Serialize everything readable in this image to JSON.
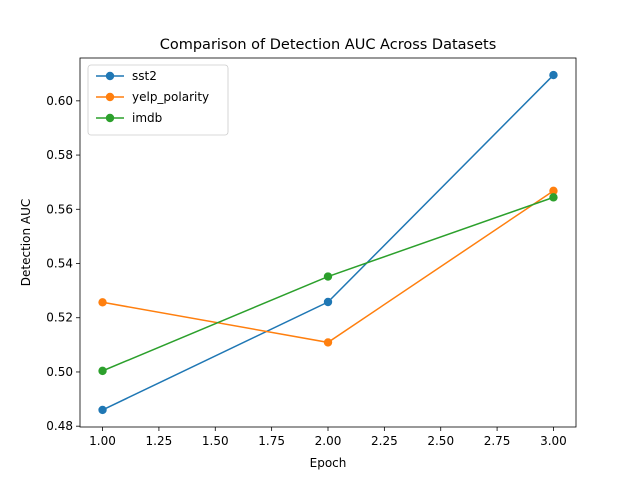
{
  "chart_data": {
    "type": "line",
    "title": "Comparison of Detection AUC Across Datasets",
    "xlabel": "Epoch",
    "ylabel": "Detection AUC",
    "xlim": [
      0.9,
      3.1
    ],
    "ylim": [
      0.4797,
      0.6158
    ],
    "xticks": [
      1.0,
      1.25,
      1.5,
      1.75,
      2.0,
      2.25,
      2.5,
      2.75,
      3.0
    ],
    "xtick_labels": [
      "1.00",
      "1.25",
      "1.50",
      "1.75",
      "2.00",
      "2.25",
      "2.50",
      "2.75",
      "3.00"
    ],
    "yticks": [
      0.48,
      0.5,
      0.52,
      0.54,
      0.56,
      0.58,
      0.6
    ],
    "ytick_labels": [
      "0.48",
      "0.50",
      "0.52",
      "0.54",
      "0.56",
      "0.58",
      "0.60"
    ],
    "grid": false,
    "legend_position": "top-left",
    "x": [
      1,
      2,
      3
    ],
    "series": [
      {
        "name": "sst2",
        "color": "#1f77b4",
        "values": [
          0.486,
          0.5258,
          0.6095
        ]
      },
      {
        "name": "yelp_polarity",
        "color": "#ff7f0e",
        "values": [
          0.5257,
          0.5109,
          0.5668
        ]
      },
      {
        "name": "imdb",
        "color": "#2ca02c",
        "values": [
          0.5004,
          0.5352,
          0.5644
        ]
      }
    ]
  }
}
